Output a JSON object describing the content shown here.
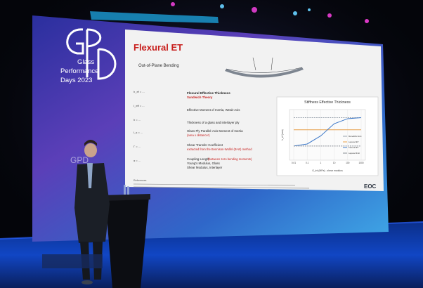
{
  "brand": {
    "logo_letters": "GPD",
    "line1": "Glass",
    "line2": "Performance",
    "line3": "Days 2023"
  },
  "slide": {
    "title": "Flexural ET",
    "diagram_label": "Out-of-Plane Bending",
    "rows": [
      {
        "text": "Flexural Effective Thickness",
        "sub": "Sandwich Theory"
      },
      {
        "text": "Effective Moment of Inertia, Weak-Axis",
        "sub": ""
      },
      {
        "text": "Thickness of a glass and interlayer ply",
        "sub": ""
      },
      {
        "text": "Glass Ply Parallel-Axis Moment of Inertia",
        "sub": "(area x distance²)"
      },
      {
        "text": "Shear Transfer Coefficient",
        "sub": "extracted from the Bennison-Wolfel (B-W) method"
      },
      {
        "text": "Coupling Length",
        "sub": "(between zero bending moments)"
      },
      {
        "text": "Young's Modulus, Glass",
        "sub": ""
      },
      {
        "text": "Shear Modulus, Interlayer",
        "sub": ""
      }
    ],
    "formula_snippets": [
      "h_ef = ...",
      "I_eff = ...",
      "h = ...",
      "I_s = ...",
      "Γ = ...",
      "α = ..."
    ],
    "references_label": "References",
    "footer_logo": "EOC"
  },
  "chart_data": {
    "type": "line",
    "title": "Stiffness Effective Thickness",
    "xlabel": "G_int (MPa) - shear modulus",
    "ylabel": "h_ef (mm)",
    "x_ticks": [
      "0.01",
      "0.1",
      "1",
      "10",
      "100",
      "1000"
    ],
    "legend": [
      "Monolithic limit",
      "Layered ET",
      "Flexural ET",
      "Layered limit"
    ],
    "series": [
      {
        "name": "Monolithic limit",
        "values": [
          36,
          36,
          36,
          36,
          36,
          36
        ]
      },
      {
        "name": "Layered ET",
        "values": [
          30,
          30,
          30,
          30,
          30,
          30
        ]
      },
      {
        "name": "Flexural ET",
        "values": [
          22,
          23,
          27,
          33,
          35.5,
          36
        ]
      },
      {
        "name": "Layered limit",
        "values": [
          22,
          22,
          22,
          22,
          22,
          22
        ]
      }
    ],
    "colors": [
      "#9aa3ad",
      "#e8a04a",
      "#3d78c8",
      "#8a8f96"
    ]
  }
}
